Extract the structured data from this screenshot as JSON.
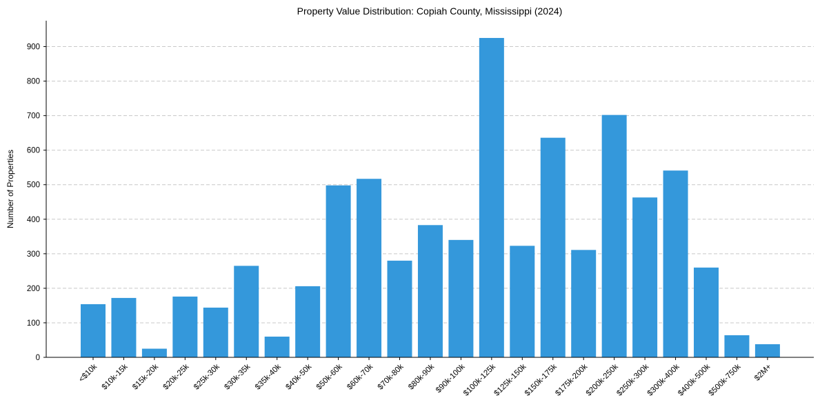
{
  "chart_data": {
    "type": "bar",
    "title": "Property Value Distribution: Copiah County, Mississippi (2024)",
    "xlabel": "",
    "ylabel": "Number of Properties",
    "ylim": [
      0,
      975
    ],
    "yticks": [
      0,
      100,
      200,
      300,
      400,
      500,
      600,
      700,
      800,
      900
    ],
    "grid": "y-dashed",
    "bar_color": "#3498db",
    "categories": [
      "<$10k",
      "$10k-15k",
      "$15k-20k",
      "$20k-25k",
      "$25k-30k",
      "$30k-35k",
      "$35k-40k",
      "$40k-50k",
      "$50k-60k",
      "$60k-70k",
      "$70k-80k",
      "$80k-90k",
      "$90k-100k",
      "$100k-125k",
      "$125k-150k",
      "$150k-175k",
      "$175k-200k",
      "$200k-250k",
      "$250k-300k",
      "$300k-400k",
      "$400k-500k",
      "$500k-750k",
      "$2M+"
    ],
    "values": [
      154,
      172,
      25,
      176,
      144,
      265,
      60,
      206,
      498,
      517,
      280,
      383,
      340,
      925,
      323,
      636,
      311,
      702,
      463,
      541,
      260,
      64,
      38
    ]
  }
}
